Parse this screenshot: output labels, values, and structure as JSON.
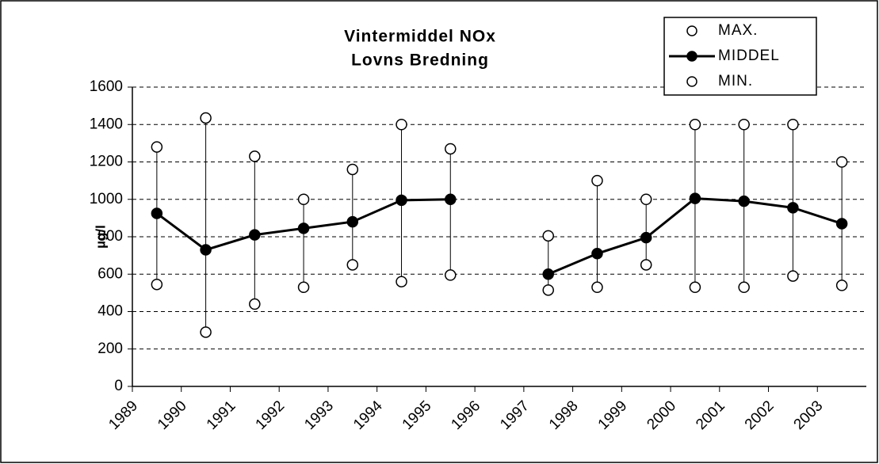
{
  "chart_data": {
    "type": "line",
    "title": [
      "Vintermiddel  NOx",
      "Lovns Bredning"
    ],
    "y_label": "µg/l",
    "categories": [
      "1989",
      "1990",
      "1991",
      "1992",
      "1993",
      "1994",
      "1995",
      "1996",
      "1997",
      "1998",
      "1999",
      "2000",
      "2001",
      "2002",
      "2003"
    ],
    "series": [
      {
        "name": "MAX.",
        "color": "#ffffff",
        "values": [
          1280,
          1435,
          1230,
          1000,
          1160,
          1400,
          1270,
          null,
          805,
          1100,
          1000,
          1400,
          1400,
          1400,
          1200
        ]
      },
      {
        "name": "MIDDEL",
        "color": "#000000",
        "values": [
          925,
          730,
          810,
          845,
          880,
          995,
          1000,
          null,
          600,
          710,
          795,
          1005,
          990,
          955,
          870
        ]
      },
      {
        "name": "MIN.",
        "color": "#ffffff",
        "values": [
          545,
          290,
          440,
          530,
          650,
          560,
          595,
          null,
          515,
          530,
          650,
          530,
          530,
          590,
          540
        ]
      }
    ],
    "ylim": [
      0,
      1600
    ],
    "yticks": [
      0,
      200,
      400,
      600,
      800,
      1000,
      1200,
      1400,
      1600
    ],
    "grid": true,
    "legend": "top-right"
  }
}
